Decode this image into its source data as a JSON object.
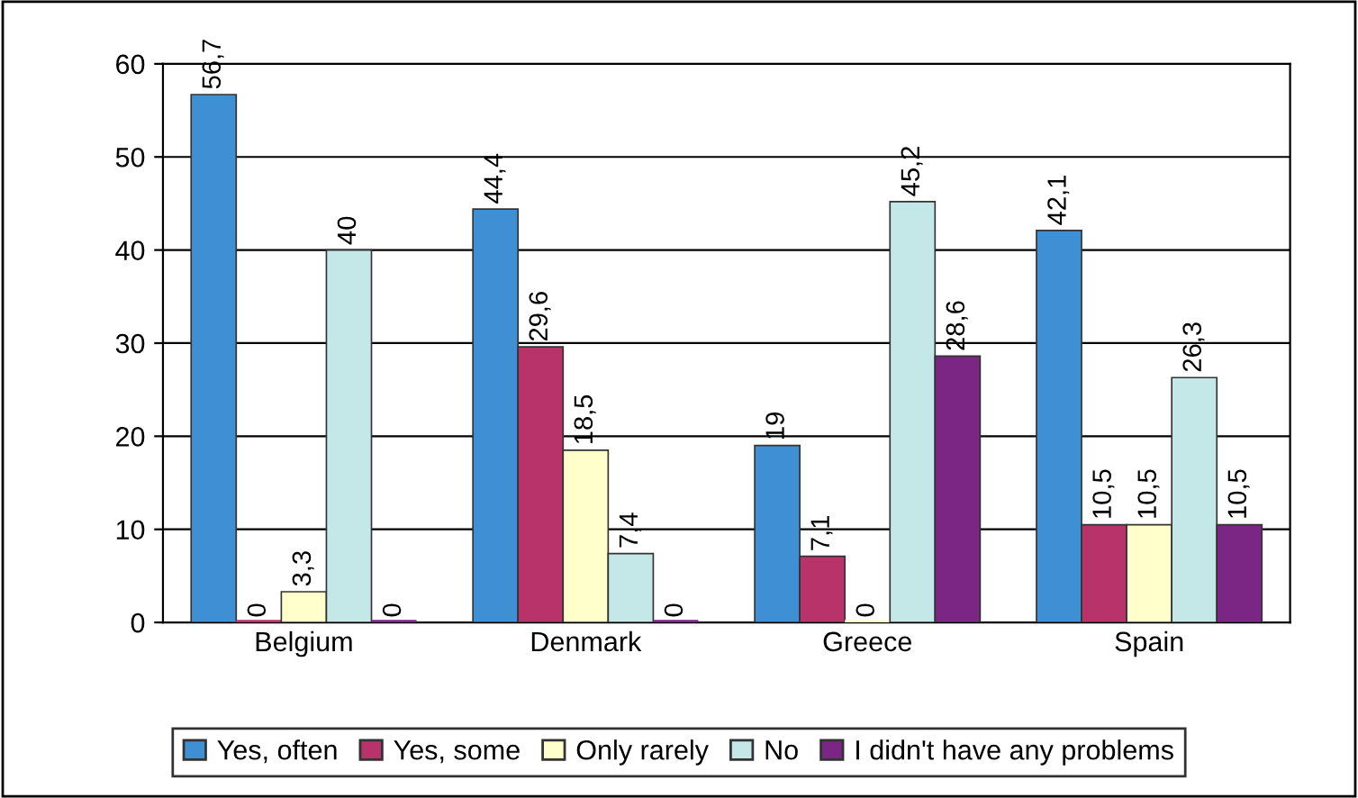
{
  "chart_data": {
    "type": "bar",
    "categories": [
      "Belgium",
      "Denmark",
      "Greece",
      "Spain"
    ],
    "series": [
      {
        "name": "Yes, often",
        "color": "#3f8fd4",
        "values": [
          56.7,
          44.4,
          19,
          42.1
        ],
        "value_labels": [
          "56,7",
          "44,4",
          "19",
          "42,1"
        ]
      },
      {
        "name": "Yes, some",
        "color": "#b8336a",
        "values": [
          0,
          29.6,
          7.1,
          10.5
        ],
        "value_labels": [
          "0",
          "29,6",
          "7,1",
          "10,5"
        ]
      },
      {
        "name": "Only rarely",
        "color": "#ffffcc",
        "values": [
          3.3,
          18.5,
          0,
          10.5
        ],
        "value_labels": [
          "3,3",
          "18,5",
          "0",
          "10,5"
        ]
      },
      {
        "name": "No",
        "color": "#c4e8e8",
        "values": [
          40,
          7.4,
          45.2,
          26.3
        ],
        "value_labels": [
          "40",
          "7,4",
          "45,2",
          "26,3"
        ]
      },
      {
        "name": "I didn't have any problems",
        "color": "#7b2584",
        "values": [
          0,
          0,
          28.6,
          10.5
        ],
        "value_labels": [
          "0",
          "0",
          "28,6",
          "10,5"
        ]
      }
    ],
    "ylim": [
      0,
      60
    ],
    "yticks": [
      0,
      10,
      20,
      30,
      40,
      50,
      60
    ],
    "grid": "y",
    "legend": "bottom"
  }
}
